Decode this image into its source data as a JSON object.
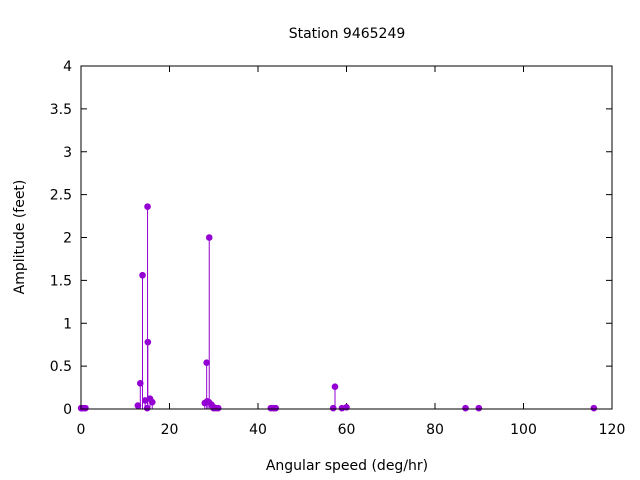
{
  "chart_data": {
    "type": "scatter",
    "style": "impulses-with-points",
    "title": "Station 9465249",
    "xlabel": "Angular speed (deg/hr)",
    "ylabel": "Amplitude (feet)",
    "xlim": [
      0,
      120
    ],
    "ylim": [
      0,
      4
    ],
    "xticks": [
      "0",
      "20",
      "40",
      "60",
      "80",
      "100",
      "120"
    ],
    "yticks": [
      "0",
      "0.5",
      "1",
      "1.5",
      "2",
      "2.5",
      "3",
      "3.5",
      "4"
    ],
    "grid": false,
    "legend": "none",
    "color": "#9400d3",
    "series": [
      {
        "points": [
          [
            0.04,
            0.01
          ],
          [
            0.08,
            0.01
          ],
          [
            0.5,
            0.01
          ],
          [
            1.0,
            0.01
          ],
          [
            12.85,
            0.04
          ],
          [
            13.4,
            0.3
          ],
          [
            13.9,
            1.56
          ],
          [
            14.5,
            0.1
          ],
          [
            14.96,
            0.01
          ],
          [
            15.04,
            2.36
          ],
          [
            15.1,
            0.78
          ],
          [
            15.59,
            0.12
          ],
          [
            16.1,
            0.08
          ],
          [
            27.97,
            0.07
          ],
          [
            28.4,
            0.54
          ],
          [
            28.51,
            0.09
          ],
          [
            28.9,
            0.08
          ],
          [
            28.98,
            2.0
          ],
          [
            29.5,
            0.05
          ],
          [
            29.96,
            0.01
          ],
          [
            30.0,
            0.02
          ],
          [
            30.5,
            0.01
          ],
          [
            31.0,
            0.01
          ],
          [
            42.9,
            0.01
          ],
          [
            43.5,
            0.01
          ],
          [
            44.0,
            0.01
          ],
          [
            57.0,
            0.01
          ],
          [
            57.4,
            0.26
          ],
          [
            58.98,
            0.01
          ],
          [
            60.0,
            0.02
          ],
          [
            86.9,
            0.01
          ],
          [
            89.9,
            0.01
          ],
          [
            115.9,
            0.01
          ]
        ]
      }
    ]
  }
}
